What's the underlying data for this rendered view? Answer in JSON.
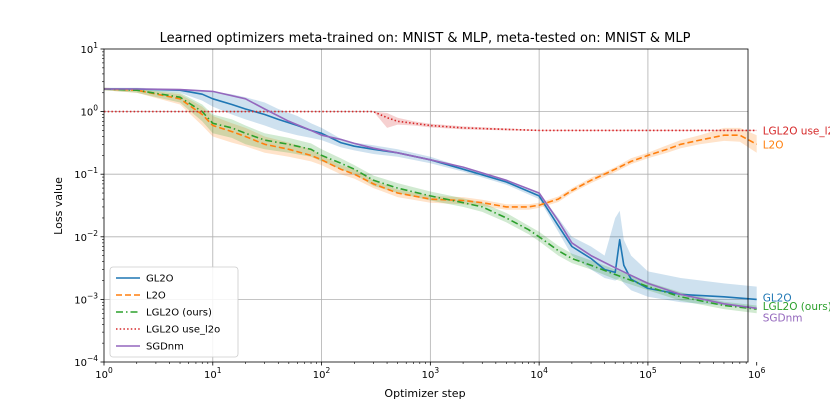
{
  "chart_data": {
    "type": "line",
    "title": "Learned optimizers meta-trained on: MNIST & MLP, meta-tested on: MNIST & MLP",
    "xlabel": "Optimizer step",
    "ylabel": "Loss value",
    "xscale": "log",
    "yscale": "log",
    "xlim_exp": [
      0,
      5.92
    ],
    "ylim_exp": [
      -4,
      1
    ],
    "xticks": [
      {
        "exp": 0,
        "base": "10",
        "sup": "0"
      },
      {
        "exp": 1,
        "base": "10",
        "sup": "1"
      },
      {
        "exp": 2,
        "base": "10",
        "sup": "2"
      },
      {
        "exp": 3,
        "base": "10",
        "sup": "3"
      },
      {
        "exp": 4,
        "base": "10",
        "sup": "4"
      },
      {
        "exp": 5,
        "base": "10",
        "sup": "5"
      },
      {
        "exp": 6,
        "base": "10",
        "sup": "6"
      }
    ],
    "yticks": [
      {
        "exp": -4,
        "base": "10",
        "sup": "−4"
      },
      {
        "exp": -3,
        "base": "10",
        "sup": "−3"
      },
      {
        "exp": -2,
        "base": "10",
        "sup": "−2"
      },
      {
        "exp": -1,
        "base": "10",
        "sup": "−1"
      },
      {
        "exp": 0,
        "base": "10",
        "sup": "0"
      },
      {
        "exp": 1,
        "base": "10",
        "sup": "1"
      }
    ],
    "grid": true,
    "legend_position": "lower-left",
    "series": [
      {
        "name": "GL2O",
        "end_label": "GL2O",
        "color": "#1f77b4",
        "dash": "solid",
        "x": [
          1,
          2,
          5,
          8,
          10,
          15,
          20,
          30,
          40,
          60,
          80,
          100,
          150,
          200,
          300,
          500,
          1000,
          2000,
          5000,
          10000,
          15000,
          20000,
          30000,
          40000,
          50000,
          55000,
          60000,
          70000,
          100000,
          200000,
          500000,
          1000000
        ],
        "y": [
          2.3,
          2.3,
          2.2,
          1.9,
          1.6,
          1.3,
          1.1,
          0.9,
          0.75,
          0.6,
          0.5,
          0.45,
          0.32,
          0.28,
          0.25,
          0.22,
          0.17,
          0.12,
          0.075,
          0.045,
          0.015,
          0.007,
          0.0045,
          0.003,
          0.0027,
          0.009,
          0.0035,
          0.0021,
          0.0015,
          0.0012,
          0.0011,
          0.001
        ],
        "band_low": [
          2.2,
          2.2,
          2.0,
          1.5,
          1.2,
          0.9,
          0.75,
          0.6,
          0.5,
          0.42,
          0.38,
          0.35,
          0.27,
          0.24,
          0.21,
          0.19,
          0.15,
          0.11,
          0.068,
          0.04,
          0.012,
          0.005,
          0.003,
          0.0022,
          0.002,
          0.0022,
          0.0018,
          0.0014,
          0.0011,
          0.0009,
          0.0008,
          0.0007
        ],
        "band_high": [
          2.4,
          2.4,
          2.3,
          2.2,
          2.1,
          1.9,
          1.7,
          1.4,
          1.1,
          0.85,
          0.65,
          0.55,
          0.37,
          0.32,
          0.29,
          0.25,
          0.19,
          0.13,
          0.082,
          0.05,
          0.02,
          0.01,
          0.007,
          0.005,
          0.02,
          0.026,
          0.009,
          0.005,
          0.0028,
          0.0022,
          0.0018,
          0.0016
        ]
      },
      {
        "name": "L2O",
        "end_label": "L2O",
        "color": "#ff7f0e",
        "dash": "dashed",
        "x": [
          1,
          2,
          5,
          8,
          10,
          15,
          20,
          30,
          50,
          80,
          100,
          150,
          200,
          300,
          500,
          1000,
          2000,
          3000,
          5000,
          8000,
          10000,
          15000,
          20000,
          30000,
          50000,
          70000,
          100000,
          150000,
          200000,
          300000,
          500000,
          700000,
          1000000
        ],
        "y": [
          2.3,
          2.2,
          1.6,
          0.9,
          0.6,
          0.48,
          0.4,
          0.3,
          0.25,
          0.2,
          0.17,
          0.12,
          0.1,
          0.07,
          0.05,
          0.04,
          0.038,
          0.035,
          0.03,
          0.03,
          0.032,
          0.04,
          0.055,
          0.08,
          0.12,
          0.16,
          0.2,
          0.25,
          0.3,
          0.35,
          0.42,
          0.42,
          0.3
        ],
        "band_low": [
          2.2,
          2.0,
          1.3,
          0.6,
          0.4,
          0.32,
          0.28,
          0.22,
          0.19,
          0.16,
          0.14,
          0.1,
          0.085,
          0.06,
          0.043,
          0.035,
          0.033,
          0.031,
          0.027,
          0.027,
          0.029,
          0.036,
          0.05,
          0.072,
          0.108,
          0.145,
          0.18,
          0.22,
          0.26,
          0.3,
          0.34,
          0.33,
          0.22
        ],
        "band_high": [
          2.4,
          2.3,
          1.9,
          1.2,
          0.85,
          0.65,
          0.55,
          0.4,
          0.32,
          0.25,
          0.2,
          0.14,
          0.12,
          0.08,
          0.057,
          0.045,
          0.043,
          0.039,
          0.033,
          0.033,
          0.035,
          0.044,
          0.06,
          0.088,
          0.13,
          0.18,
          0.22,
          0.29,
          0.35,
          0.42,
          0.55,
          0.55,
          0.42
        ]
      },
      {
        "name": "LGL2O (ours)",
        "end_label": "LGL2O (ours)",
        "color": "#2ca02c",
        "dash": "dashdot",
        "x": [
          1,
          2,
          5,
          8,
          10,
          15,
          20,
          30,
          50,
          80,
          100,
          150,
          200,
          300,
          500,
          1000,
          2000,
          3000,
          5000,
          8000,
          10000,
          15000,
          20000,
          30000,
          50000,
          100000,
          200000,
          500000,
          1000000
        ],
        "y": [
          2.3,
          2.2,
          1.7,
          1.0,
          0.65,
          0.55,
          0.45,
          0.35,
          0.3,
          0.25,
          0.2,
          0.15,
          0.12,
          0.08,
          0.06,
          0.045,
          0.035,
          0.03,
          0.02,
          0.013,
          0.01,
          0.006,
          0.0045,
          0.0035,
          0.0025,
          0.0016,
          0.0011,
          0.0008,
          0.0007
        ],
        "band_low": [
          2.2,
          2.0,
          1.4,
          0.7,
          0.45,
          0.38,
          0.3,
          0.25,
          0.22,
          0.19,
          0.16,
          0.12,
          0.1,
          0.065,
          0.05,
          0.038,
          0.03,
          0.025,
          0.017,
          0.011,
          0.0085,
          0.005,
          0.0038,
          0.003,
          0.0021,
          0.0014,
          0.00095,
          0.0007,
          0.0006
        ],
        "band_high": [
          2.4,
          2.3,
          2.0,
          1.3,
          0.9,
          0.75,
          0.6,
          0.45,
          0.38,
          0.31,
          0.25,
          0.18,
          0.14,
          0.095,
          0.072,
          0.053,
          0.041,
          0.035,
          0.024,
          0.015,
          0.012,
          0.0072,
          0.0054,
          0.0042,
          0.003,
          0.0019,
          0.0013,
          0.00092,
          0.0008
        ]
      },
      {
        "name": "LGL2O use_l2o",
        "end_label": "LGL2O use_l2o",
        "color": "#d62728",
        "dash": "dotted",
        "x": [
          1,
          10,
          100,
          200,
          300,
          400,
          500,
          700,
          1000,
          2000,
          5000,
          10000,
          100000,
          1000000
        ],
        "y": [
          1.0,
          1.0,
          1.0,
          1.0,
          1.0,
          0.8,
          0.7,
          0.65,
          0.6,
          0.55,
          0.52,
          0.5,
          0.5,
          0.5
        ],
        "band_low": [
          1.0,
          1.0,
          1.0,
          1.0,
          1.0,
          0.55,
          0.62,
          0.6,
          0.56,
          0.52,
          0.5,
          0.49,
          0.49,
          0.49
        ],
        "band_high": [
          1.0,
          1.0,
          1.0,
          1.0,
          1.0,
          0.95,
          0.8,
          0.7,
          0.64,
          0.58,
          0.54,
          0.51,
          0.51,
          0.51
        ]
      },
      {
        "name": "SGDnm",
        "end_label": "SGDnm",
        "color": "#9467bd",
        "dash": "solid",
        "x": [
          1,
          2,
          5,
          10,
          20,
          30,
          50,
          80,
          100,
          150,
          200,
          300,
          500,
          1000,
          2000,
          5000,
          10000,
          15000,
          20000,
          30000,
          50000,
          100000,
          200000,
          500000,
          1000000
        ],
        "y": [
          2.3,
          2.3,
          2.25,
          2.1,
          1.6,
          1.1,
          0.7,
          0.5,
          0.42,
          0.36,
          0.31,
          0.26,
          0.22,
          0.17,
          0.13,
          0.08,
          0.05,
          0.018,
          0.008,
          0.005,
          0.0032,
          0.0018,
          0.0012,
          0.00085,
          0.00072
        ],
        "band_low": [
          2.3,
          2.3,
          2.25,
          2.1,
          1.6,
          1.1,
          0.7,
          0.5,
          0.42,
          0.36,
          0.31,
          0.26,
          0.22,
          0.17,
          0.13,
          0.08,
          0.05,
          0.018,
          0.008,
          0.005,
          0.0032,
          0.0018,
          0.0012,
          0.00085,
          0.00072
        ],
        "band_high": [
          2.3,
          2.3,
          2.25,
          2.1,
          1.6,
          1.1,
          0.7,
          0.5,
          0.42,
          0.36,
          0.31,
          0.26,
          0.22,
          0.17,
          0.13,
          0.08,
          0.05,
          0.018,
          0.008,
          0.005,
          0.0032,
          0.0018,
          0.0012,
          0.00085,
          0.00072
        ]
      }
    ]
  }
}
